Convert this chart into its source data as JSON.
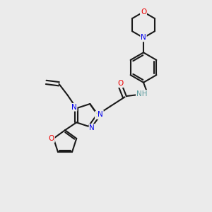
{
  "bg_color": "#ebebeb",
  "bond_color": "#1a1a1a",
  "N_color": "#0000ee",
  "O_color": "#ee0000",
  "S_color": "#bbbb00",
  "H_color": "#5f9ea0",
  "figsize": [
    3.0,
    3.0
  ],
  "dpi": 100,
  "xlim": [
    0,
    10
  ],
  "ylim": [
    0,
    10
  ]
}
